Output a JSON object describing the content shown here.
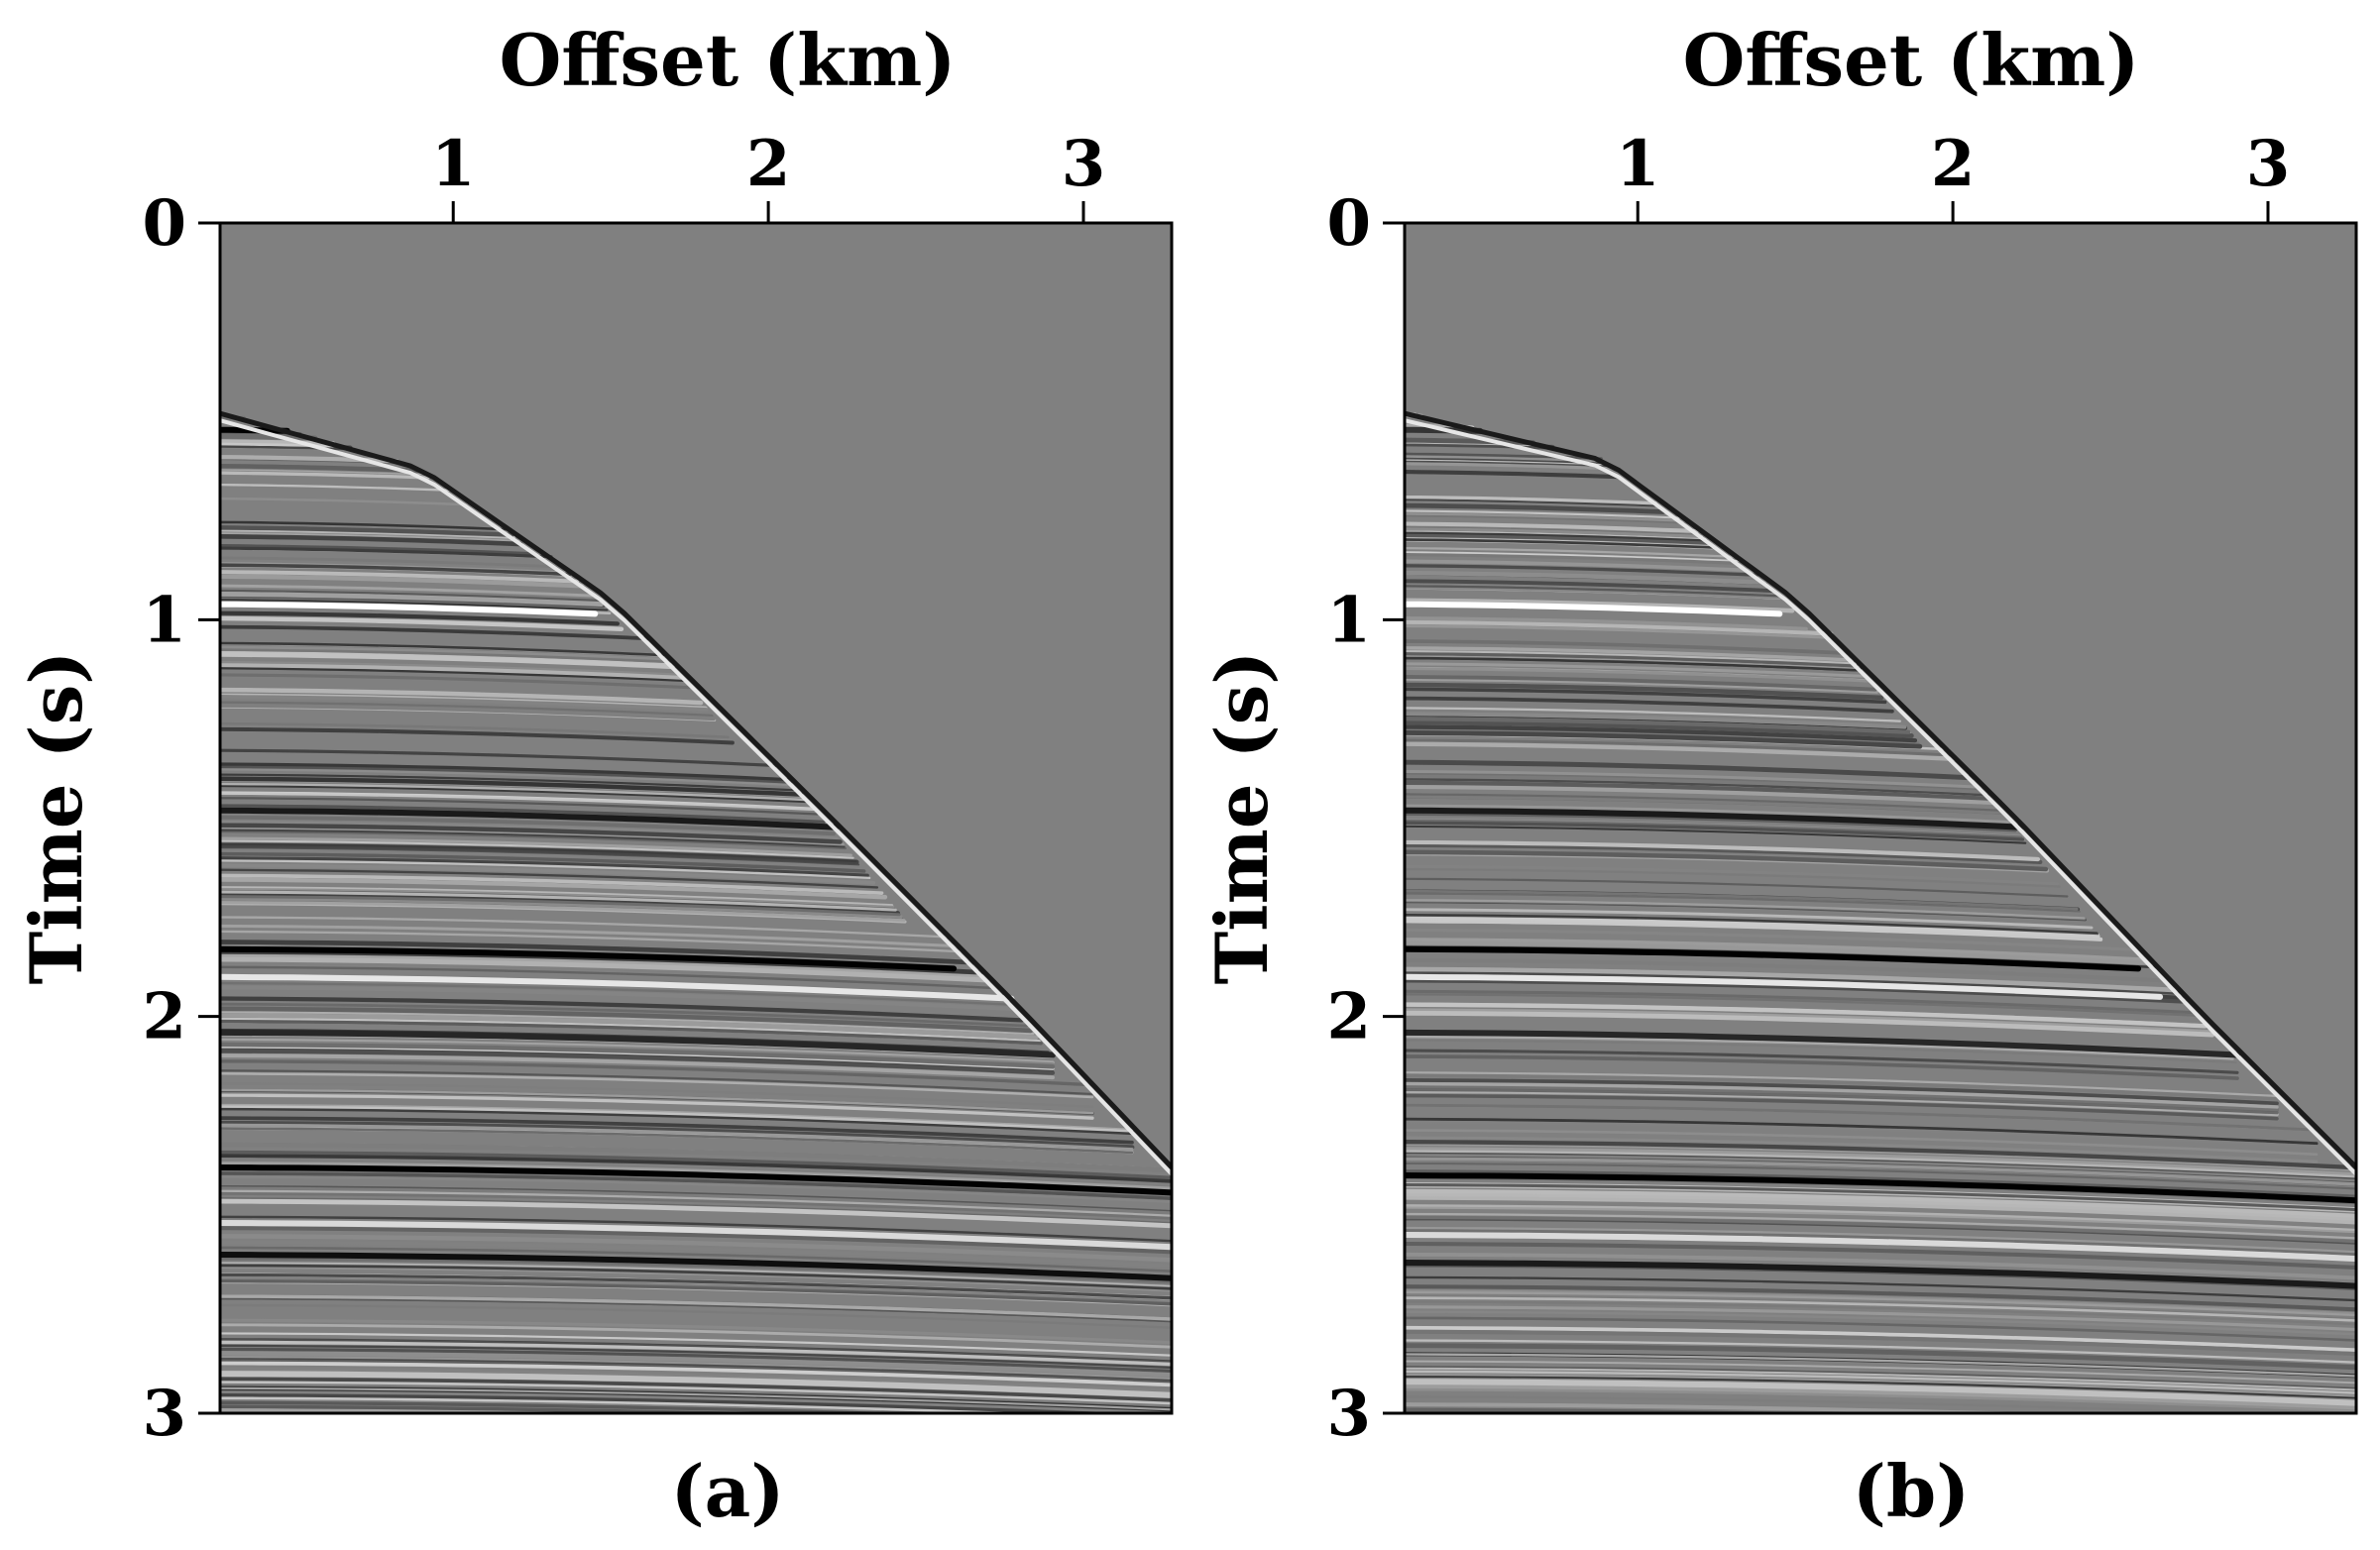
{
  "chart_data": [
    {
      "type": "heatmap",
      "panel_label": "(a)",
      "xlabel": "Offset (km)",
      "ylabel": "Time (s)",
      "xaxis_position": "top",
      "y_inverted": true,
      "xlim": [
        0.26,
        3.28
      ],
      "ylim": [
        0,
        3
      ],
      "xticks": [
        1,
        2,
        3
      ],
      "xtick_labels": [
        "1",
        "2",
        "3"
      ],
      "yticks": [
        0,
        1,
        2,
        3
      ],
      "ytick_labels": [
        "0",
        "1",
        "2",
        "3"
      ],
      "colormap": "gray",
      "background_color": "#808080",
      "first_break": {
        "x": [
          0.26,
          0.9,
          1.5,
          2.2,
          2.8,
          3.28
        ],
        "t": [
          0.48,
          0.62,
          0.95,
          1.5,
          1.98,
          2.38
        ]
      },
      "strong_events": [
        {
          "t0": 0.52,
          "x_end": 0.9,
          "amplitude": -1
        },
        {
          "t0": 0.96,
          "x_end": 1.45,
          "amplitude": 1
        },
        {
          "t0": 1.48,
          "x_end": 2.3,
          "amplitude": -0.8
        },
        {
          "t0": 1.83,
          "x_end": 2.8,
          "amplitude": -1
        },
        {
          "t0": 1.9,
          "x_end": 3.0,
          "amplitude": 0.8
        },
        {
          "t0": 2.04,
          "x_end": 3.28,
          "amplitude": -0.7
        },
        {
          "t0": 2.38,
          "x_end": 3.28,
          "amplitude": -1
        },
        {
          "t0": 2.52,
          "x_end": 3.28,
          "amplitude": 0.7
        },
        {
          "t0": 2.6,
          "x_end": 3.28,
          "amplitude": -0.9
        },
        {
          "t0": 2.9,
          "x_end": 3.28,
          "amplitude": 0.5
        }
      ]
    },
    {
      "type": "heatmap",
      "panel_label": "(b)",
      "xlabel": "Offset (km)",
      "ylabel": "Time (s)",
      "xaxis_position": "top",
      "y_inverted": true,
      "xlim": [
        0.26,
        3.28
      ],
      "ylim": [
        0,
        3
      ],
      "xticks": [
        1,
        2,
        3
      ],
      "xtick_labels": [
        "1",
        "2",
        "3"
      ],
      "yticks": [
        0,
        1,
        2,
        3
      ],
      "ytick_labels": [
        "0",
        "1",
        "2",
        "3"
      ],
      "colormap": "gray",
      "background_color": "#808080",
      "first_break": {
        "x": [
          0.26,
          0.9,
          1.5,
          2.2,
          2.8,
          3.28
        ],
        "t": [
          0.48,
          0.6,
          0.95,
          1.5,
          2.0,
          2.38
        ]
      },
      "strong_events": [
        {
          "t0": 0.52,
          "x_end": 0.9,
          "amplitude": -0.6
        },
        {
          "t0": 0.96,
          "x_end": 1.45,
          "amplitude": 1
        },
        {
          "t0": 1.48,
          "x_end": 2.3,
          "amplitude": -0.8
        },
        {
          "t0": 1.83,
          "x_end": 2.8,
          "amplitude": -1
        },
        {
          "t0": 1.9,
          "x_end": 3.0,
          "amplitude": 0.8
        },
        {
          "t0": 2.04,
          "x_end": 3.28,
          "amplitude": -0.7
        },
        {
          "t0": 2.4,
          "x_end": 3.28,
          "amplitude": -1
        },
        {
          "t0": 2.55,
          "x_end": 3.28,
          "amplitude": 0.7
        },
        {
          "t0": 2.62,
          "x_end": 3.28,
          "amplitude": -0.8
        },
        {
          "t0": 2.92,
          "x_end": 3.28,
          "amplitude": 0.5
        }
      ]
    }
  ]
}
